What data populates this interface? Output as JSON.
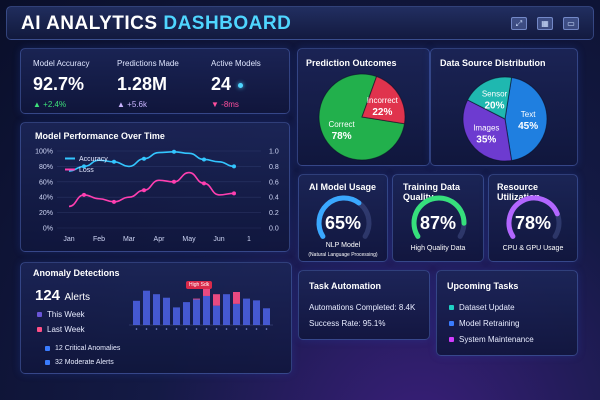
{
  "header": {
    "title_main": "AI ANALYTICS ",
    "title_accent": "DASHBOARD",
    "icons": [
      "expand-icon",
      "grid-icon",
      "window-icon"
    ]
  },
  "kpis": [
    {
      "label": "Model Accuracy",
      "value": "92.7%",
      "delta": "+2.4%",
      "dir": "up"
    },
    {
      "label": "Predictions Made",
      "value": "1.28M",
      "delta": "+5.6k",
      "dir": "up"
    },
    {
      "label": "Active Models",
      "value": "24",
      "delta": "-8ms",
      "dir": "down"
    }
  ],
  "performance": {
    "title": "Model Performance Over Time",
    "legend": [
      "Accuracy",
      "Loss"
    ]
  },
  "prediction_outcomes": {
    "title": "Prediction Outcomes",
    "slices": [
      {
        "label": "Correct",
        "value": "78%"
      },
      {
        "label": "Incorrect",
        "value": "22%"
      }
    ]
  },
  "data_source": {
    "title": "Data Source Distribution",
    "slices": [
      {
        "label": "Text",
        "value": "45%"
      },
      {
        "label": "Images",
        "value": "35%"
      },
      {
        "label": "Sensor",
        "value": "20%"
      }
    ]
  },
  "gauges": [
    {
      "title": "AI Model Usage",
      "value": "65%",
      "caption": "NLP Model",
      "subcaption": "(Natural Language Processing)",
      "color": "#3aa8ff",
      "level": 0.65
    },
    {
      "title": "Training Data Quality",
      "value": "87%",
      "caption": "High Quality Data",
      "color": "#36e07c",
      "level": 0.87
    },
    {
      "title": "Resource Utilization",
      "value": "78%",
      "caption": "CPU & GPU Usage",
      "color": "#b266ff",
      "level": 0.78
    }
  ],
  "anomaly": {
    "title": "Anomaly Detections",
    "count": "124",
    "unit": "Alerts",
    "legend": [
      "This Week",
      "Last Week"
    ],
    "items": [
      "12 Critical Anomalies",
      "32 Moderate Alerts"
    ],
    "spike_label": "High Sdk"
  },
  "task_automation": {
    "title": "Task Automation",
    "lines": [
      "Automations Completed: 8.4K",
      "Success Rate: 95.1%"
    ]
  },
  "upcoming": {
    "title": "Upcoming Tasks",
    "items": [
      "Dataset Update",
      "Model Retraining",
      "System Maintenance"
    ]
  },
  "chart_data": [
    {
      "type": "line",
      "title": "Model Performance Over Time",
      "categories": [
        "Jan",
        "Feb",
        "Mar",
        "Apr",
        "May",
        "Jun",
        "1"
      ],
      "ylim_left": [
        0,
        100
      ],
      "yticks_left": [
        "100%",
        "80%",
        "60%",
        "40%",
        "20%",
        "0%"
      ],
      "ylim_right": [
        0,
        1.0
      ],
      "yticks_right": [
        "1.0",
        "0.8",
        "0.6",
        "0.4",
        "0.2",
        "0.0"
      ],
      "series": [
        {
          "name": "Accuracy",
          "color": "#33c6ff",
          "axis": "left",
          "x": [
            0,
            0.5,
            1,
            1.5,
            2,
            2.5,
            3,
            3.5,
            4,
            4.5,
            5,
            5.5
          ],
          "y": [
            74,
            80,
            88,
            86,
            80,
            90,
            98,
            99,
            97,
            89,
            86,
            80
          ]
        },
        {
          "name": "Loss",
          "color": "#ff3fb0",
          "axis": "right",
          "x": [
            0,
            0.5,
            1,
            1.5,
            2,
            2.5,
            3,
            3.5,
            4,
            4.5,
            5,
            5.5
          ],
          "y": [
            0.28,
            0.43,
            0.38,
            0.34,
            0.4,
            0.49,
            0.62,
            0.6,
            0.72,
            0.58,
            0.43,
            0.45
          ]
        }
      ],
      "grid": true,
      "legend": "top-left"
    },
    {
      "type": "pie",
      "title": "Prediction Outcomes",
      "categories": [
        "Correct",
        "Incorrect"
      ],
      "values": [
        78,
        22
      ],
      "colors": [
        "#22b04c",
        "#e0334d"
      ]
    },
    {
      "type": "pie",
      "title": "Data Source Distribution",
      "categories": [
        "Text",
        "Images",
        "Sensor"
      ],
      "values": [
        45,
        35,
        20
      ],
      "colors": [
        "#1f7fe0",
        "#6d3bd0",
        "#1fb8b0"
      ]
    },
    {
      "type": "bar",
      "title": "Anomaly Detections",
      "series": [
        {
          "name": "This Week",
          "color": "#4a5fe0",
          "values": [
            55,
            78,
            70,
            62,
            40,
            52,
            58,
            66,
            44,
            70,
            48,
            60,
            56,
            38
          ]
        },
        {
          "name": "Last Week",
          "color": "#ff4f86",
          "values": [
            30,
            42,
            50,
            45,
            38,
            48,
            60,
            88,
            70,
            52,
            75,
            58,
            40,
            34
          ]
        }
      ]
    }
  ]
}
